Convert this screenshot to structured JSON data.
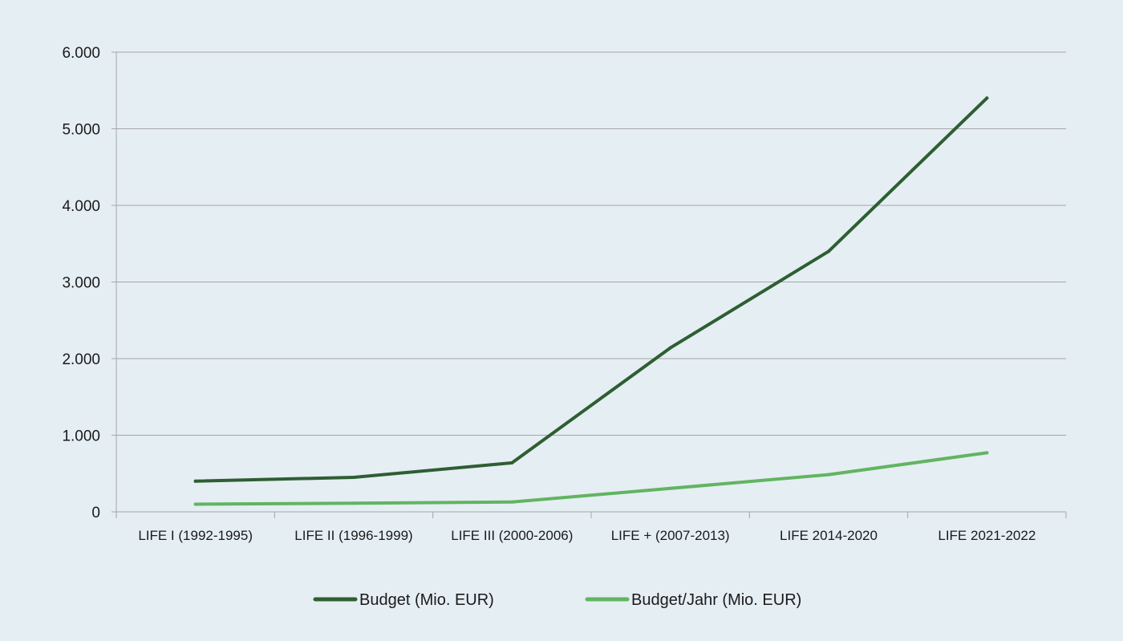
{
  "chart_data": {
    "type": "line",
    "categories": [
      "LIFE I (1992-1995)",
      "LIFE II (1996-1999)",
      "LIFE III (2000-2006)",
      "LIFE + (2007-2013)",
      "LIFE 2014-2020",
      "LIFE 2021-2022"
    ],
    "series": [
      {
        "name": "Budget (Mio. EUR)",
        "color": "#2e5e33",
        "values": [
          400,
          450,
          640,
          2140,
          3400,
          5400
        ]
      },
      {
        "name": "Budget/Jahr (Mio. EUR)",
        "color": "#62b462",
        "values": [
          100,
          112,
          129,
          306,
          486,
          771
        ]
      }
    ],
    "y_ticks": [
      "0",
      "1.000",
      "2.000",
      "3.000",
      "4.000",
      "5.000",
      "6.000"
    ],
    "y_tick_values": [
      0,
      1000,
      2000,
      3000,
      4000,
      5000,
      6000
    ],
    "ylim": [
      0,
      6000
    ],
    "grid": true,
    "legend": "bottom-center",
    "background": "#e5eef3",
    "gridline_color": "#a6a6a6"
  }
}
